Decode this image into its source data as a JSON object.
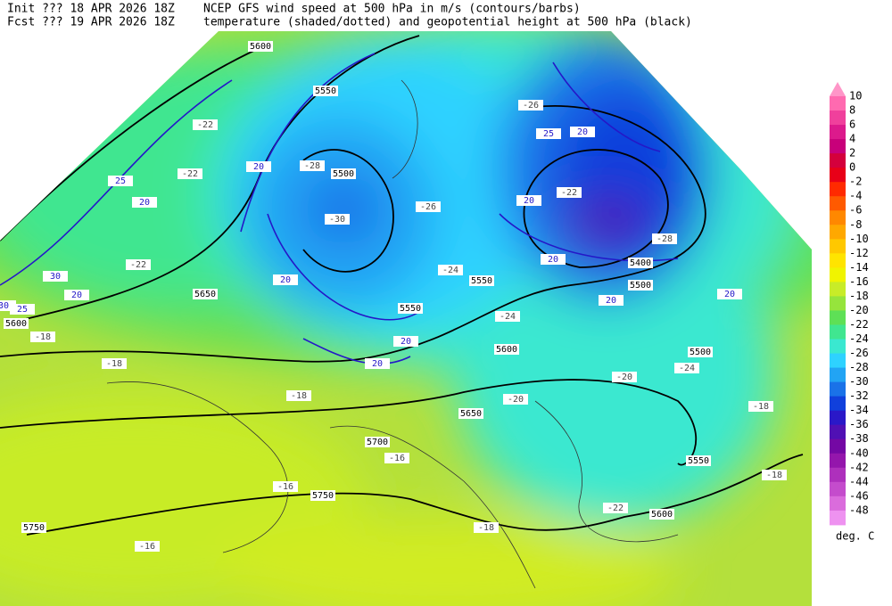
{
  "header": {
    "init_line": "Init  ??? 18 APR 2026 18Z",
    "fcst_line": "Fcst ??? 19 APR 2026 18Z",
    "title_line1": "NCEP GFS wind speed at 500 hPa in m/s (contours/barbs)",
    "title_line2": "temperature (shaded/dotted) and geopotential height at 500 hPa (black)"
  },
  "colorbar": {
    "levels": [
      10,
      8,
      6,
      4,
      2,
      0,
      -2,
      -4,
      -6,
      -8,
      -10,
      -12,
      -14,
      -16,
      -18,
      -20,
      -22,
      -24,
      -26,
      -28,
      -30,
      -32,
      -34,
      -36,
      -38,
      -40,
      -42,
      -44,
      -46,
      -48
    ],
    "colors": [
      "#ff6ab0",
      "#f0409c",
      "#dc1a8c",
      "#c8007a",
      "#d4003c",
      "#e80018",
      "#ff2a00",
      "#ff5a00",
      "#ff8800",
      "#ffa800",
      "#ffc800",
      "#ffe400",
      "#f0f400",
      "#c8ec28",
      "#96e43c",
      "#5ee056",
      "#40e690",
      "#3ae8d0",
      "#2ed2ff",
      "#22a4f4",
      "#1a72e8",
      "#1040dc",
      "#2a18c8",
      "#5010b4",
      "#7408a4",
      "#9416ac",
      "#ae30bc",
      "#c44ccc",
      "#da6cdc",
      "#ee92f0"
    ],
    "above_color": "#ff96c8",
    "unit": "deg. C"
  },
  "map": {
    "height_labels": [
      5600,
      5550,
      5500,
      5650,
      5550,
      5550,
      5400,
      5600,
      5650,
      5700,
      5750,
      5750,
      5500,
      5550,
      5600,
      5600,
      5500
    ],
    "temperature_labels": [
      -22,
      -22,
      -22,
      -30,
      -28,
      -26,
      -24,
      -26,
      -24,
      -20,
      -18,
      -18,
      -18,
      -16,
      -16,
      -16,
      -18,
      -18,
      -18,
      -22,
      -24,
      -28,
      -22,
      -20
    ],
    "wind_labels": [
      25,
      20,
      20,
      20,
      20,
      20,
      25,
      20,
      20,
      20,
      20,
      20,
      30,
      20,
      25,
      30
    ]
  }
}
